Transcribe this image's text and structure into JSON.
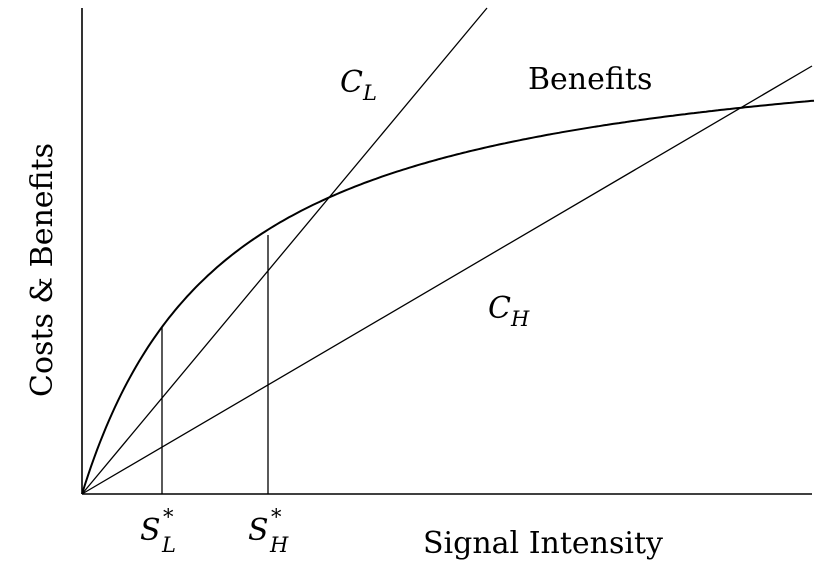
{
  "diagram": {
    "y_axis_label": "Costs & Benefits",
    "x_axis_label": "Signal Intensity",
    "curves": {
      "benefits": "Benefits",
      "cost_low": {
        "main": "C",
        "sub": "L"
      },
      "cost_high": {
        "main": "C",
        "sub": "H"
      }
    },
    "markers": {
      "s_low": {
        "main": "S",
        "sup": "*",
        "sub": "L"
      },
      "s_high": {
        "main": "S",
        "sup": "*",
        "sub": "H"
      }
    },
    "colors": {
      "lines": "#000000",
      "background": "#ffffff"
    }
  }
}
